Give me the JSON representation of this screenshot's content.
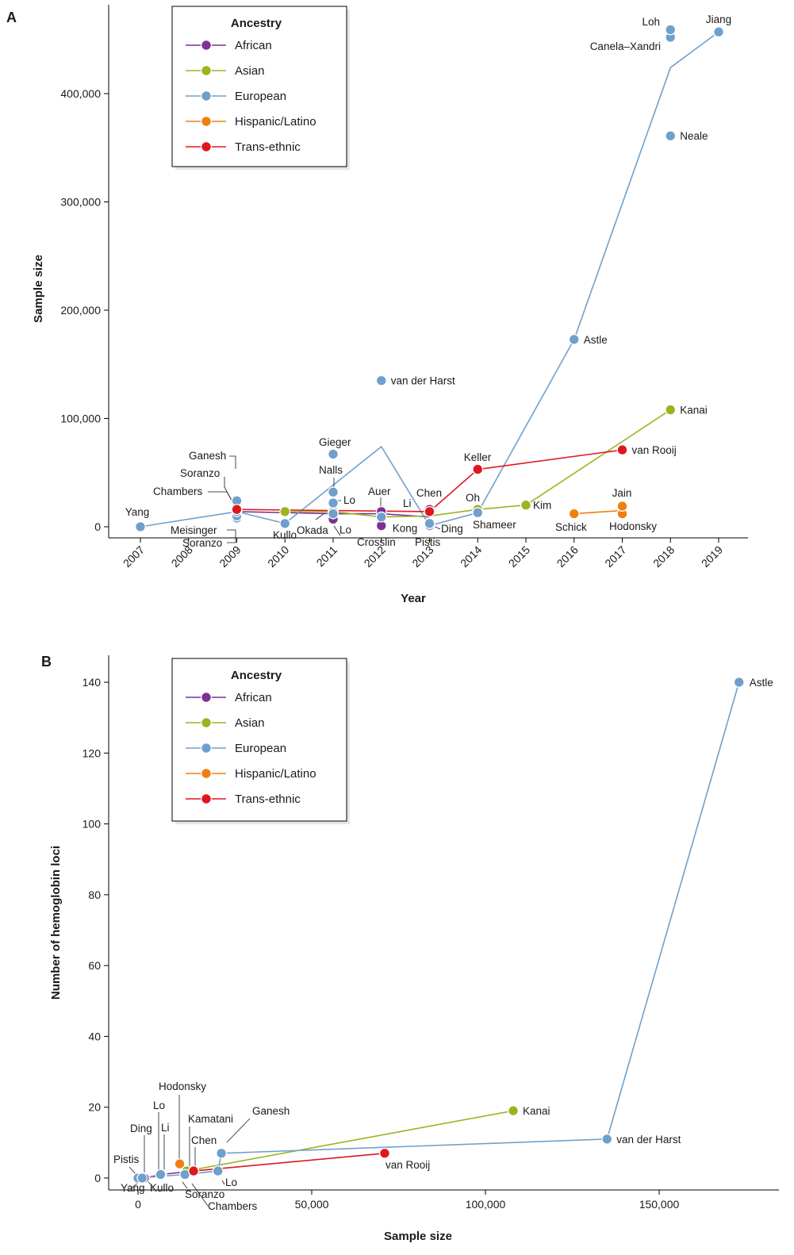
{
  "colors": {
    "African": "#7b3294",
    "Asian": "#9cb41e",
    "European": "#6fa0cc",
    "Hispanic/Latino": "#f07f12",
    "Trans-ethnic": "#e0161f"
  },
  "chart_data": [
    {
      "panel": "A",
      "type": "scatter",
      "xlabel": "Year",
      "ylabel": "Sample size",
      "xticks": [
        "2007",
        "2008",
        "2009",
        "2010",
        "2011",
        "2012",
        "2013",
        "2014",
        "2015",
        "2016",
        "2017",
        "2018",
        "2019"
      ],
      "yticks": [
        "0",
        "100,000",
        "200,000",
        "300,000",
        "400,000"
      ],
      "xlim": [
        2006.5,
        2019.6
      ],
      "ylim": [
        -20000,
        480000
      ],
      "legend": {
        "title": "Ancestry",
        "entries": [
          "African",
          "Asian",
          "European",
          "Hispanic/Latino",
          "Trans-ethnic"
        ],
        "position": "top-left"
      },
      "series": [
        {
          "name": "African",
          "points": [
            {
              "x": 2009,
              "y": 14000,
              "label": ""
            },
            {
              "x": 2011,
              "y": 7000,
              "label": "Lo"
            },
            {
              "x": 2012,
              "y": 1000,
              "label": "Kong"
            },
            {
              "x": 2012,
              "y": 14000,
              "label": "Auer"
            },
            {
              "x": 2013,
              "y": 16000,
              "label": "Chen"
            }
          ],
          "line": [
            [
              2009,
              14000
            ],
            [
              2011,
              12000
            ],
            [
              2012,
              12000
            ],
            [
              2013,
              9000
            ]
          ]
        },
        {
          "name": "Asian",
          "points": [
            {
              "x": 2010,
              "y": 14000,
              "label": ""
            },
            {
              "x": 2011,
              "y": 14000,
              "label": ""
            },
            {
              "x": 2014,
              "y": 16000,
              "label": "Oh"
            },
            {
              "x": 2015,
              "y": 20000,
              "label": "Kim"
            },
            {
              "x": 2018,
              "y": 108000,
              "label": "Kanai"
            }
          ],
          "line": [
            [
              2010,
              14000
            ],
            [
              2011,
              14000
            ],
            [
              2012,
              9000
            ],
            [
              2013,
              10000
            ],
            [
              2014,
              16000
            ],
            [
              2015,
              20000
            ],
            [
              2018,
              108000
            ]
          ]
        },
        {
          "name": "European",
          "points": [
            {
              "x": 2007,
              "y": 0,
              "label": "Yang"
            },
            {
              "x": 2009,
              "y": 8000,
              "label": "Meisinger"
            },
            {
              "x": 2009,
              "y": 10000,
              "label": "Soranzo"
            },
            {
              "x": 2009,
              "y": 14000,
              "label": "Chambers"
            },
            {
              "x": 2009,
              "y": 18000,
              "label": "Soranzo"
            },
            {
              "x": 2009,
              "y": 24000,
              "label": "Ganesh"
            },
            {
              "x": 2010,
              "y": 3000,
              "label": "Kullo"
            },
            {
              "x": 2011,
              "y": 12000,
              "label": "Okada"
            },
            {
              "x": 2011,
              "y": 22000,
              "label": "Lo"
            },
            {
              "x": 2011,
              "y": 32000,
              "label": "Nalls"
            },
            {
              "x": 2011,
              "y": 67000,
              "label": "Gieger"
            },
            {
              "x": 2012,
              "y": 135000,
              "label": "van der Harst"
            },
            {
              "x": 2012,
              "y": 9000,
              "label": "Crosslin"
            },
            {
              "x": 2013,
              "y": 1000,
              "label": "Pistis"
            },
            {
              "x": 2013,
              "y": 3000,
              "label": "Ding"
            },
            {
              "x": 2014,
              "y": 13000,
              "label": "Shameer"
            },
            {
              "x": 2016,
              "y": 173000,
              "label": "Astle"
            },
            {
              "x": 2018,
              "y": 361000,
              "label": "Neale"
            },
            {
              "x": 2018,
              "y": 452000,
              "label": "Canela–Xandri"
            },
            {
              "x": 2018,
              "y": 459000,
              "label": "Loh"
            },
            {
              "x": 2019,
              "y": 457000,
              "label": "Jiang"
            }
          ],
          "line": [
            [
              2007,
              0
            ],
            [
              2009,
              14000
            ],
            [
              2010,
              3000
            ],
            [
              2012,
              74000
            ],
            [
              2013,
              1000
            ],
            [
              2014,
              13000
            ],
            [
              2016,
              173000
            ],
            [
              2018,
              424000
            ],
            [
              2019,
              457000
            ]
          ]
        },
        {
          "name": "Hispanic/Latino",
          "points": [
            {
              "x": 2016,
              "y": 12000,
              "label": "Schick"
            },
            {
              "x": 2017,
              "y": 12000,
              "label": "Hodonsky"
            },
            {
              "x": 2017,
              "y": 19000,
              "label": "Jain"
            }
          ],
          "line": [
            [
              2016,
              12000
            ],
            [
              2017,
              15000
            ]
          ]
        },
        {
          "name": "Trans-ethnic",
          "points": [
            {
              "x": 2009,
              "y": 16000,
              "label": ""
            },
            {
              "x": 2013,
              "y": 14000,
              "label": "Li"
            },
            {
              "x": 2014,
              "y": 53000,
              "label": "Keller"
            },
            {
              "x": 2017,
              "y": 71000,
              "label": "van Rooij"
            }
          ],
          "line": [
            [
              2009,
              16000
            ],
            [
              2013,
              14000
            ],
            [
              2014,
              53000
            ],
            [
              2017,
              71000
            ]
          ]
        }
      ]
    },
    {
      "panel": "B",
      "type": "scatter",
      "xlabel": "Sample size",
      "ylabel": "Number of hemoglobin loci",
      "xticks": [
        "0",
        "50,000",
        "100,000",
        "150,000"
      ],
      "yticks": [
        "0",
        "20",
        "40",
        "60",
        "80",
        "100",
        "120",
        "140"
      ],
      "xlim": [
        -6500,
        182000
      ],
      "ylim": [
        -3,
        148
      ],
      "legend": {
        "title": "Ancestry",
        "entries": [
          "African",
          "Asian",
          "European",
          "Hispanic/Latino",
          "Trans-ethnic"
        ],
        "position": "top-left"
      },
      "series": [
        {
          "name": "African",
          "points": [
            {
              "x": 1800,
              "y": 0,
              "label": ""
            },
            {
              "x": 6800,
              "y": 1,
              "label": "Li"
            },
            {
              "x": 16000,
              "y": 2,
              "label": ""
            }
          ],
          "line": [
            [
              1800,
              0
            ],
            [
              6800,
              1
            ],
            [
              16000,
              2
            ]
          ]
        },
        {
          "name": "Asian",
          "points": [
            {
              "x": 14000,
              "y": 2,
              "label": ""
            },
            {
              "x": 108000,
              "y": 19,
              "label": "Kanai"
            }
          ],
          "line": [
            [
              14000,
              2
            ],
            [
              108000,
              19
            ]
          ]
        },
        {
          "name": "European",
          "points": [
            {
              "x": 0,
              "y": 0,
              "label": "Pistis"
            },
            {
              "x": 1200,
              "y": 0,
              "label": "Ding"
            },
            {
              "x": 6500,
              "y": 1,
              "label": "Lo"
            },
            {
              "x": 13500,
              "y": 1,
              "label": "Soranzo"
            },
            {
              "x": 23000,
              "y": 2,
              "label": "Chambers"
            },
            {
              "x": 24000,
              "y": 7,
              "label": "Ganesh"
            },
            {
              "x": 135000,
              "y": 11,
              "label": "van der Harst"
            },
            {
              "x": 173000,
              "y": 140,
              "label": "Astle"
            }
          ],
          "line": [
            [
              0,
              0
            ],
            [
              13500,
              1
            ],
            [
              23000,
              2
            ],
            [
              24000,
              7
            ],
            [
              135000,
              11
            ],
            [
              173000,
              140
            ]
          ]
        },
        {
          "name": "Hispanic/Latino",
          "points": [
            {
              "x": 12000,
              "y": 4,
              "label": "Hodonsky"
            }
          ],
          "line": []
        },
        {
          "name": "Trans-ethnic",
          "points": [
            {
              "x": 16000,
              "y": 2,
              "label": ""
            },
            {
              "x": 71000,
              "y": 7,
              "label": "van Rooij"
            }
          ],
          "line": [
            [
              16000,
              2
            ],
            [
              71000,
              7
            ]
          ]
        }
      ],
      "extra_labels": [
        "Yang",
        "Kullo",
        "Kamatani",
        "Chen",
        "Lo"
      ]
    }
  ]
}
